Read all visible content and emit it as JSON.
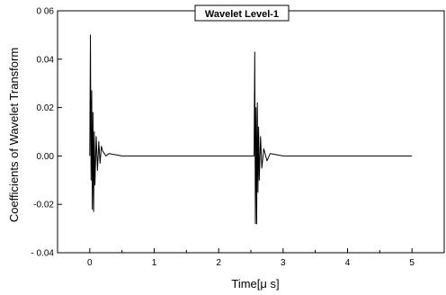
{
  "chart_data": {
    "type": "line",
    "title": "",
    "xlabel": "Time[μ s]",
    "ylabel": "Coefficients of Wavelet Transform",
    "xlim": [
      -0.5,
      5.5
    ],
    "ylim": [
      -0.04,
      0.06
    ],
    "x_ticks": [
      0,
      1,
      2,
      3,
      4,
      5
    ],
    "y_ticks": [
      -0.04,
      -0.02,
      0.0,
      0.02,
      0.04,
      0.06
    ],
    "x_tick_labels": [
      "0",
      "1",
      "2",
      "3",
      "4",
      "5"
    ],
    "y_tick_labels": [
      "- 0.04",
      "-0.02",
      "0.00",
      "0.02",
      "0.04",
      "0 06"
    ],
    "grid": false,
    "legend_position": "top-right",
    "series": [
      {
        "name": "Wavelet Level-1",
        "color": "#000000",
        "x": [
          0.0,
          0.01,
          0.02,
          0.03,
          0.04,
          0.05,
          0.06,
          0.07,
          0.08,
          0.1,
          0.12,
          0.14,
          0.16,
          0.18,
          0.2,
          0.25,
          0.3,
          0.5,
          1.0,
          1.5,
          2.0,
          2.4,
          2.55,
          2.56,
          2.57,
          2.58,
          2.59,
          2.6,
          2.61,
          2.62,
          2.63,
          2.65,
          2.67,
          2.7,
          2.75,
          2.8,
          3.0,
          3.5,
          4.0,
          4.5,
          5.0
        ],
        "y": [
          0.0,
          0.05,
          -0.01,
          0.027,
          -0.022,
          0.018,
          -0.023,
          0.01,
          -0.012,
          0.008,
          -0.006,
          0.006,
          -0.003,
          0.004,
          0.002,
          0.0,
          0.001,
          0.0,
          0.0,
          0.0,
          0.0,
          0.0,
          0.0,
          0.043,
          -0.028,
          0.02,
          -0.028,
          0.022,
          -0.015,
          0.012,
          -0.01,
          0.008,
          -0.005,
          0.003,
          -0.002,
          0.001,
          0.0,
          0.0,
          0.0,
          0.0,
          0.0
        ]
      }
    ]
  }
}
